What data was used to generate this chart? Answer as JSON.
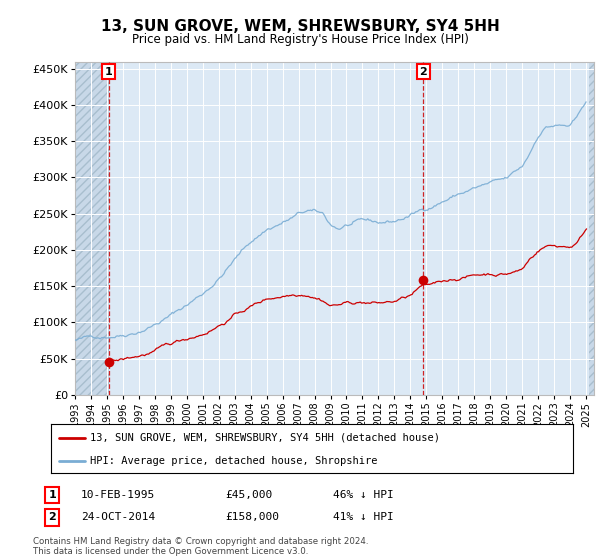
{
  "title": "13, SUN GROVE, WEM, SHREWSBURY, SY4 5HH",
  "subtitle": "Price paid vs. HM Land Registry's House Price Index (HPI)",
  "xlim_start": 1993.0,
  "xlim_end": 2025.5,
  "ylim_min": 0,
  "ylim_max": 460000,
  "yticks": [
    0,
    50000,
    100000,
    150000,
    200000,
    250000,
    300000,
    350000,
    400000,
    450000
  ],
  "ytick_labels": [
    "£0",
    "£50K",
    "£100K",
    "£150K",
    "£200K",
    "£250K",
    "£300K",
    "£350K",
    "£400K",
    "£450K"
  ],
  "xtick_years": [
    1993,
    1994,
    1995,
    1996,
    1997,
    1998,
    1999,
    2000,
    2001,
    2002,
    2003,
    2004,
    2005,
    2006,
    2007,
    2008,
    2009,
    2010,
    2011,
    2012,
    2013,
    2014,
    2015,
    2016,
    2017,
    2018,
    2019,
    2020,
    2021,
    2022,
    2023,
    2024,
    2025
  ],
  "sale1_x": 1995.11,
  "sale1_y": 45000,
  "sale1_label": "1",
  "sale1_date": "10-FEB-1995",
  "sale1_price": "£45,000",
  "sale1_hpi": "46% ↓ HPI",
  "sale2_x": 2014.81,
  "sale2_y": 158000,
  "sale2_label": "2",
  "sale2_date": "24-OCT-2014",
  "sale2_price": "£158,000",
  "sale2_hpi": "41% ↓ HPI",
  "property_line_color": "#cc0000",
  "hpi_line_color": "#7aadd4",
  "background_color": "#dce9f5",
  "hatch_bg_color": "#c8d8e8",
  "legend_label_property": "13, SUN GROVE, WEM, SHREWSBURY, SY4 5HH (detached house)",
  "legend_label_hpi": "HPI: Average price, detached house, Shropshire",
  "footer_line1": "Contains HM Land Registry data © Crown copyright and database right 2024.",
  "footer_line2": "This data is licensed under the Open Government Licence v3.0.",
  "hatch_end_x": 2025.17
}
